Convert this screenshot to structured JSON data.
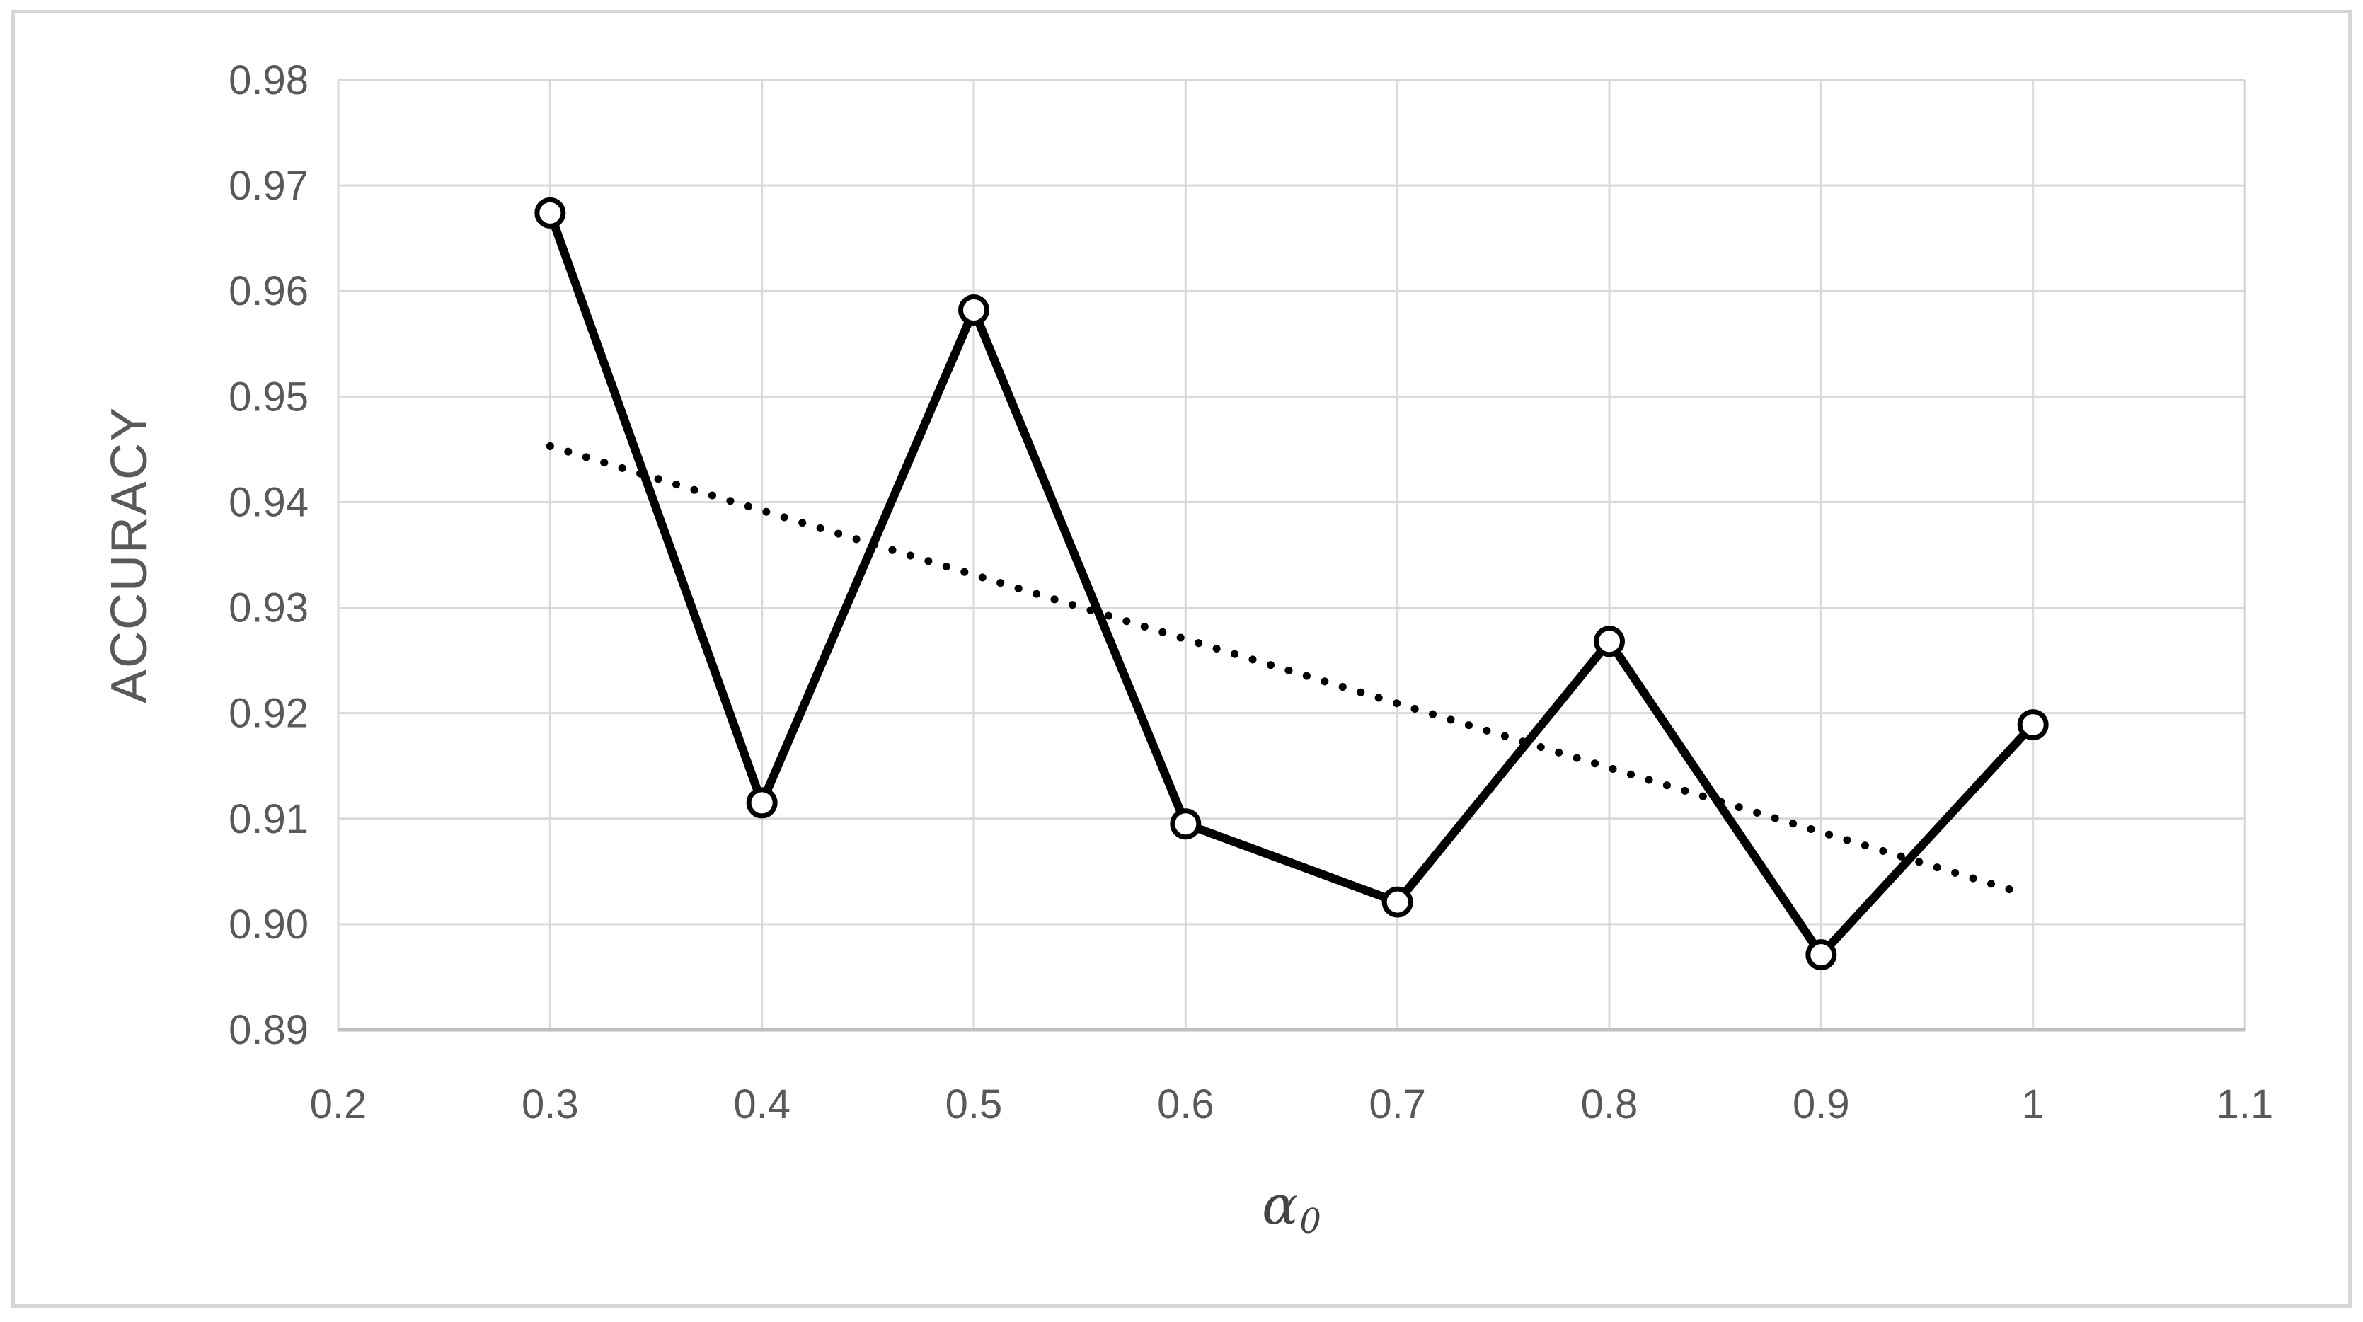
{
  "window": {
    "background": "#ffffff",
    "frame_border_color": "#d6d6d6"
  },
  "chart_data": {
    "type": "line",
    "title": "",
    "ylabel": "ACCURACY",
    "xlabel_base": "α",
    "xlabel_sub": "0",
    "x": [
      0.3,
      0.4,
      0.5,
      0.6,
      0.7,
      0.8,
      0.9,
      1
    ],
    "series": [
      {
        "name": "ACCURACY",
        "line": "solid",
        "marker": "open-circle",
        "color": "#000000",
        "values": [
          0.9674,
          0.9115,
          0.9582,
          0.9095,
          0.9021,
          0.9268,
          0.8971,
          0.9189
        ]
      }
    ],
    "trendline": {
      "name": "linear-trendline",
      "line": "dotted",
      "color": "#000000",
      "x_start": 0.3,
      "y_start": 0.9453,
      "x_end": 1,
      "y_end": 0.9026
    },
    "xlim": [
      0.2,
      1.1
    ],
    "ylim": [
      0.89,
      0.98
    ],
    "x_ticks": {
      "values": [
        0.2,
        0.3,
        0.4,
        0.5,
        0.6,
        0.7,
        0.8,
        0.9,
        1,
        1.1
      ],
      "labels": [
        "0.2",
        "0.3",
        "0.4",
        "0.5",
        "0.6",
        "0.7",
        "0.8",
        "0.9",
        "1",
        "1.1"
      ]
    },
    "y_ticks": {
      "values": [
        0.89,
        0.9,
        0.91,
        0.92,
        0.93,
        0.94,
        0.95,
        0.96,
        0.97,
        0.98
      ],
      "labels": [
        "0.89",
        "0.90",
        "0.91",
        "0.92",
        "0.93",
        "0.94",
        "0.95",
        "0.96",
        "0.97",
        "0.98"
      ]
    },
    "grid": true,
    "legend": "none",
    "colors": {
      "gridline": "#d9d9d9",
      "axis_line": "#bfbfbf",
      "tick_label": "#595959",
      "axis_title": "#595959",
      "series": "#000000",
      "marker_fill": "#ffffff"
    }
  }
}
